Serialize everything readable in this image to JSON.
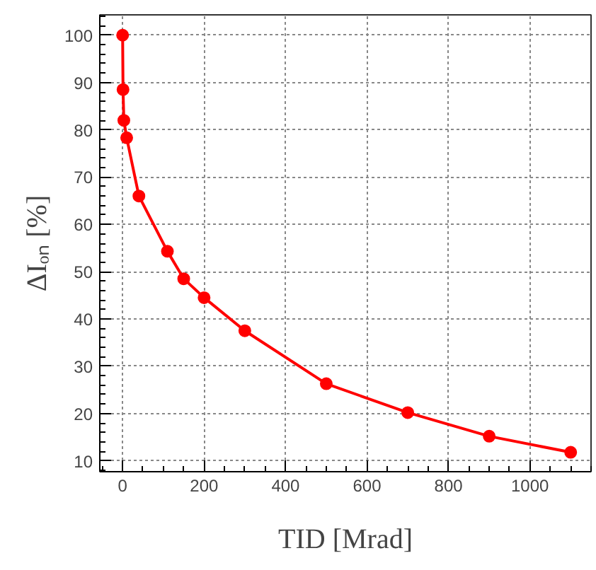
{
  "chart_data": {
    "type": "line",
    "xlabel": "TID [Mrad]",
    "ylabel": "ΔIₒₙ [%]",
    "x": [
      0,
      1,
      3,
      10,
      40,
      110,
      150,
      200,
      300,
      500,
      700,
      900,
      1100
    ],
    "series": [
      {
        "color": "#ff0000",
        "values": [
          100,
          88.5,
          82,
          78.3,
          66,
          54.3,
          48.5,
          44.5,
          37.5,
          26.3,
          20.2,
          15.2,
          11.8
        ]
      }
    ],
    "xlim": [
      -56,
      1150
    ],
    "ylim": [
      7.7,
      104.3
    ],
    "xticks": [
      0,
      200,
      400,
      600,
      800,
      1000
    ],
    "yticks": [
      10,
      20,
      30,
      40,
      50,
      60,
      70,
      80,
      90,
      100
    ],
    "grid": true,
    "marker": "circle",
    "line_style": "solid"
  }
}
